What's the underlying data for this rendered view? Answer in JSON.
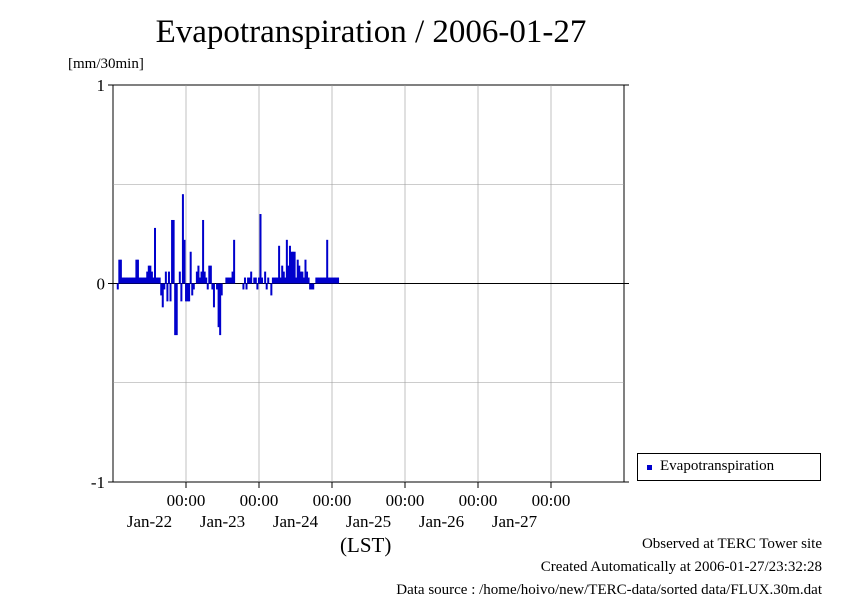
{
  "title": "Evapotranspiration / 2006-01-27",
  "y_unit": "[mm/30min]",
  "x_unit": "(LST)",
  "footer": {
    "line1": "Observed at TERC Tower site",
    "line2": "Created Automatically at 2006-01-27/23:32:28",
    "line3": "Data source : /home/hoivo/new/TERC-data/sorted  data/FLUX.30m.dat"
  },
  "colors": {
    "series": "#0000cc",
    "grid": "#999999",
    "axis": "#000000"
  },
  "chart_data": {
    "type": "bar",
    "ylim": [
      -1,
      1
    ],
    "yticks": [
      "1",
      "0",
      "-1"
    ],
    "ytick_values": [
      1,
      0,
      -1
    ],
    "grid": true,
    "legend_position": "right",
    "x_range": [
      "2006-01-21T00:00",
      "2006-01-27T24:00"
    ],
    "xticks": [
      {
        "time": "00:00",
        "date": "Jan-22"
      },
      {
        "time": "00:00",
        "date": "Jan-23"
      },
      {
        "time": "00:00",
        "date": "Jan-24"
      },
      {
        "time": "00:00",
        "date": "Jan-25"
      },
      {
        "time": "00:00",
        "date": "Jan-26"
      },
      {
        "time": "00:00",
        "date": "Jan-27"
      }
    ],
    "series": [
      {
        "name": "Evapotranspiration",
        "x_start": "2006-01-21T00:00",
        "step": "30min",
        "values": [
          -0.03,
          0.12,
          0.12,
          0.03,
          0.03,
          0.03,
          0.03,
          0.03,
          0.03,
          0.03,
          0.03,
          0.03,
          0.12,
          0.12,
          0.03,
          0.03,
          0.03,
          0.03,
          0.03,
          0.06,
          0.09,
          0.09,
          0.06,
          0.03,
          0.28,
          0.03,
          0.03,
          0.03,
          -0.06,
          -0.12,
          -0.03,
          0.06,
          -0.09,
          0.06,
          -0.09,
          0.32,
          0.32,
          -0.26,
          -0.26,
          0.0,
          0.06,
          -0.09,
          0.45,
          0.22,
          -0.09,
          -0.09,
          -0.09,
          0.16,
          -0.06,
          -0.03,
          0.0,
          0.06,
          0.09,
          0.03,
          0.06,
          0.32,
          0.06,
          0.03,
          -0.03,
          0.09,
          0.09,
          -0.03,
          -0.12,
          0.0,
          -0.03,
          -0.22,
          -0.26,
          -0.06,
          0.0,
          0.0,
          0.03,
          0.03,
          0.03,
          0.03,
          0.06,
          0.22,
          0.0,
          0.0,
          0.0,
          0.0,
          0.0,
          -0.03,
          0.03,
          -0.03,
          0.03,
          0.03,
          0.06,
          0.0,
          0.03,
          0.03,
          -0.03,
          0.03,
          0.35,
          0.03,
          0.0,
          0.06,
          -0.03,
          0.03,
          0.0,
          -0.06,
          0.03,
          0.03,
          0.03,
          0.03,
          0.19,
          0.03,
          0.09,
          0.06,
          0.03,
          0.22,
          0.09,
          0.19,
          0.16,
          0.16,
          0.16,
          0.03,
          0.12,
          0.09,
          0.06,
          0.06,
          0.03,
          0.12,
          0.06,
          0.03,
          -0.03,
          -0.03,
          -0.03,
          0.0,
          0.03,
          0.03,
          0.03,
          0.03,
          0.03,
          0.03,
          0.03,
          0.22,
          0.03,
          0.03,
          0.03,
          0.03,
          0.03,
          0.03,
          0.03,
          0.0,
          0.0,
          0.0,
          0.0,
          0.0,
          0.0,
          0.0,
          0.0,
          0.0,
          0.0,
          0.0,
          0.0,
          0.0,
          0.0,
          0.0,
          0.0,
          0.0,
          0.0,
          0.0,
          0.0,
          0.0,
          0.0,
          0.0,
          0.0,
          0.0,
          0.0,
          0.0,
          0.0,
          0.0,
          0.0,
          0.0,
          0.0,
          0.0,
          0.0,
          0.0,
          0.0,
          0.0,
          0.0,
          0.0,
          0.0,
          0.0,
          0.0,
          0.0,
          0.0,
          0.0,
          0.0,
          0.0,
          0.0,
          0.0,
          0.0,
          0.0,
          0.0,
          0.0,
          0.0,
          0.0,
          0.0,
          0.0,
          0.0,
          0.0,
          0.0,
          0.0,
          0.0,
          0.0,
          0.0,
          0.0,
          0.0,
          0.0,
          0.0,
          0.0,
          0.0,
          0.0,
          0.0,
          0.0,
          0.0,
          0.0,
          0.0,
          0.0,
          0.0,
          0.0,
          0.0,
          0.0,
          0.0,
          0.0,
          0.0,
          0.0,
          0.0,
          0.0,
          0.0,
          0.0,
          0.0,
          0.0,
          0.0,
          0.0,
          0.0,
          0.0,
          0.0,
          0.0,
          0.0,
          0.0,
          0.0,
          0.0,
          0.0,
          0.0,
          0.0,
          0.0,
          0.0,
          0.0,
          0.0,
          0.0,
          0.0,
          0.0,
          0.0,
          0.0,
          0.0,
          0.0,
          0.0,
          0.0,
          0.0,
          0.0,
          0.0,
          0.0,
          0.0,
          0.0,
          0.0,
          0.0,
          0.0,
          0.0,
          0.0,
          0.0,
          0.0,
          0.0,
          0.0,
          0.0,
          0.0,
          0.0,
          0.0,
          0.0,
          0.0,
          0.0,
          0.0,
          0.0,
          0.0,
          0.0,
          0.0,
          0.0,
          0.0,
          0.0,
          0.0,
          0.0,
          0.0,
          0.0,
          0.0,
          0.0,
          0.0,
          0.0,
          0.0,
          0.0,
          0.0,
          0.0,
          0.0,
          0.0,
          0.0,
          0.0,
          0.0,
          0.0,
          0.0,
          0.0,
          0.0,
          0.0,
          0.0,
          0.0,
          0.0,
          0.0,
          0.0,
          0.0,
          0.0,
          0.0,
          0.0,
          0.0,
          0.0,
          0.0,
          0.0,
          0.0,
          0.0,
          0.0,
          0.0,
          0.0,
          0.0,
          0.0,
          0.0,
          0.0,
          0.0,
          0.0,
          0.0,
          0.0,
          0.0,
          0.0,
          0.0,
          0.0,
          0.0,
          0.0,
          0.0,
          0.0,
          0.0,
          0.0,
          0.0,
          0.0,
          0.0,
          0.0,
          0.0,
          0.0,
          0.0,
          0.0,
          0.0,
          0.0,
          0.0
        ]
      }
    ]
  }
}
